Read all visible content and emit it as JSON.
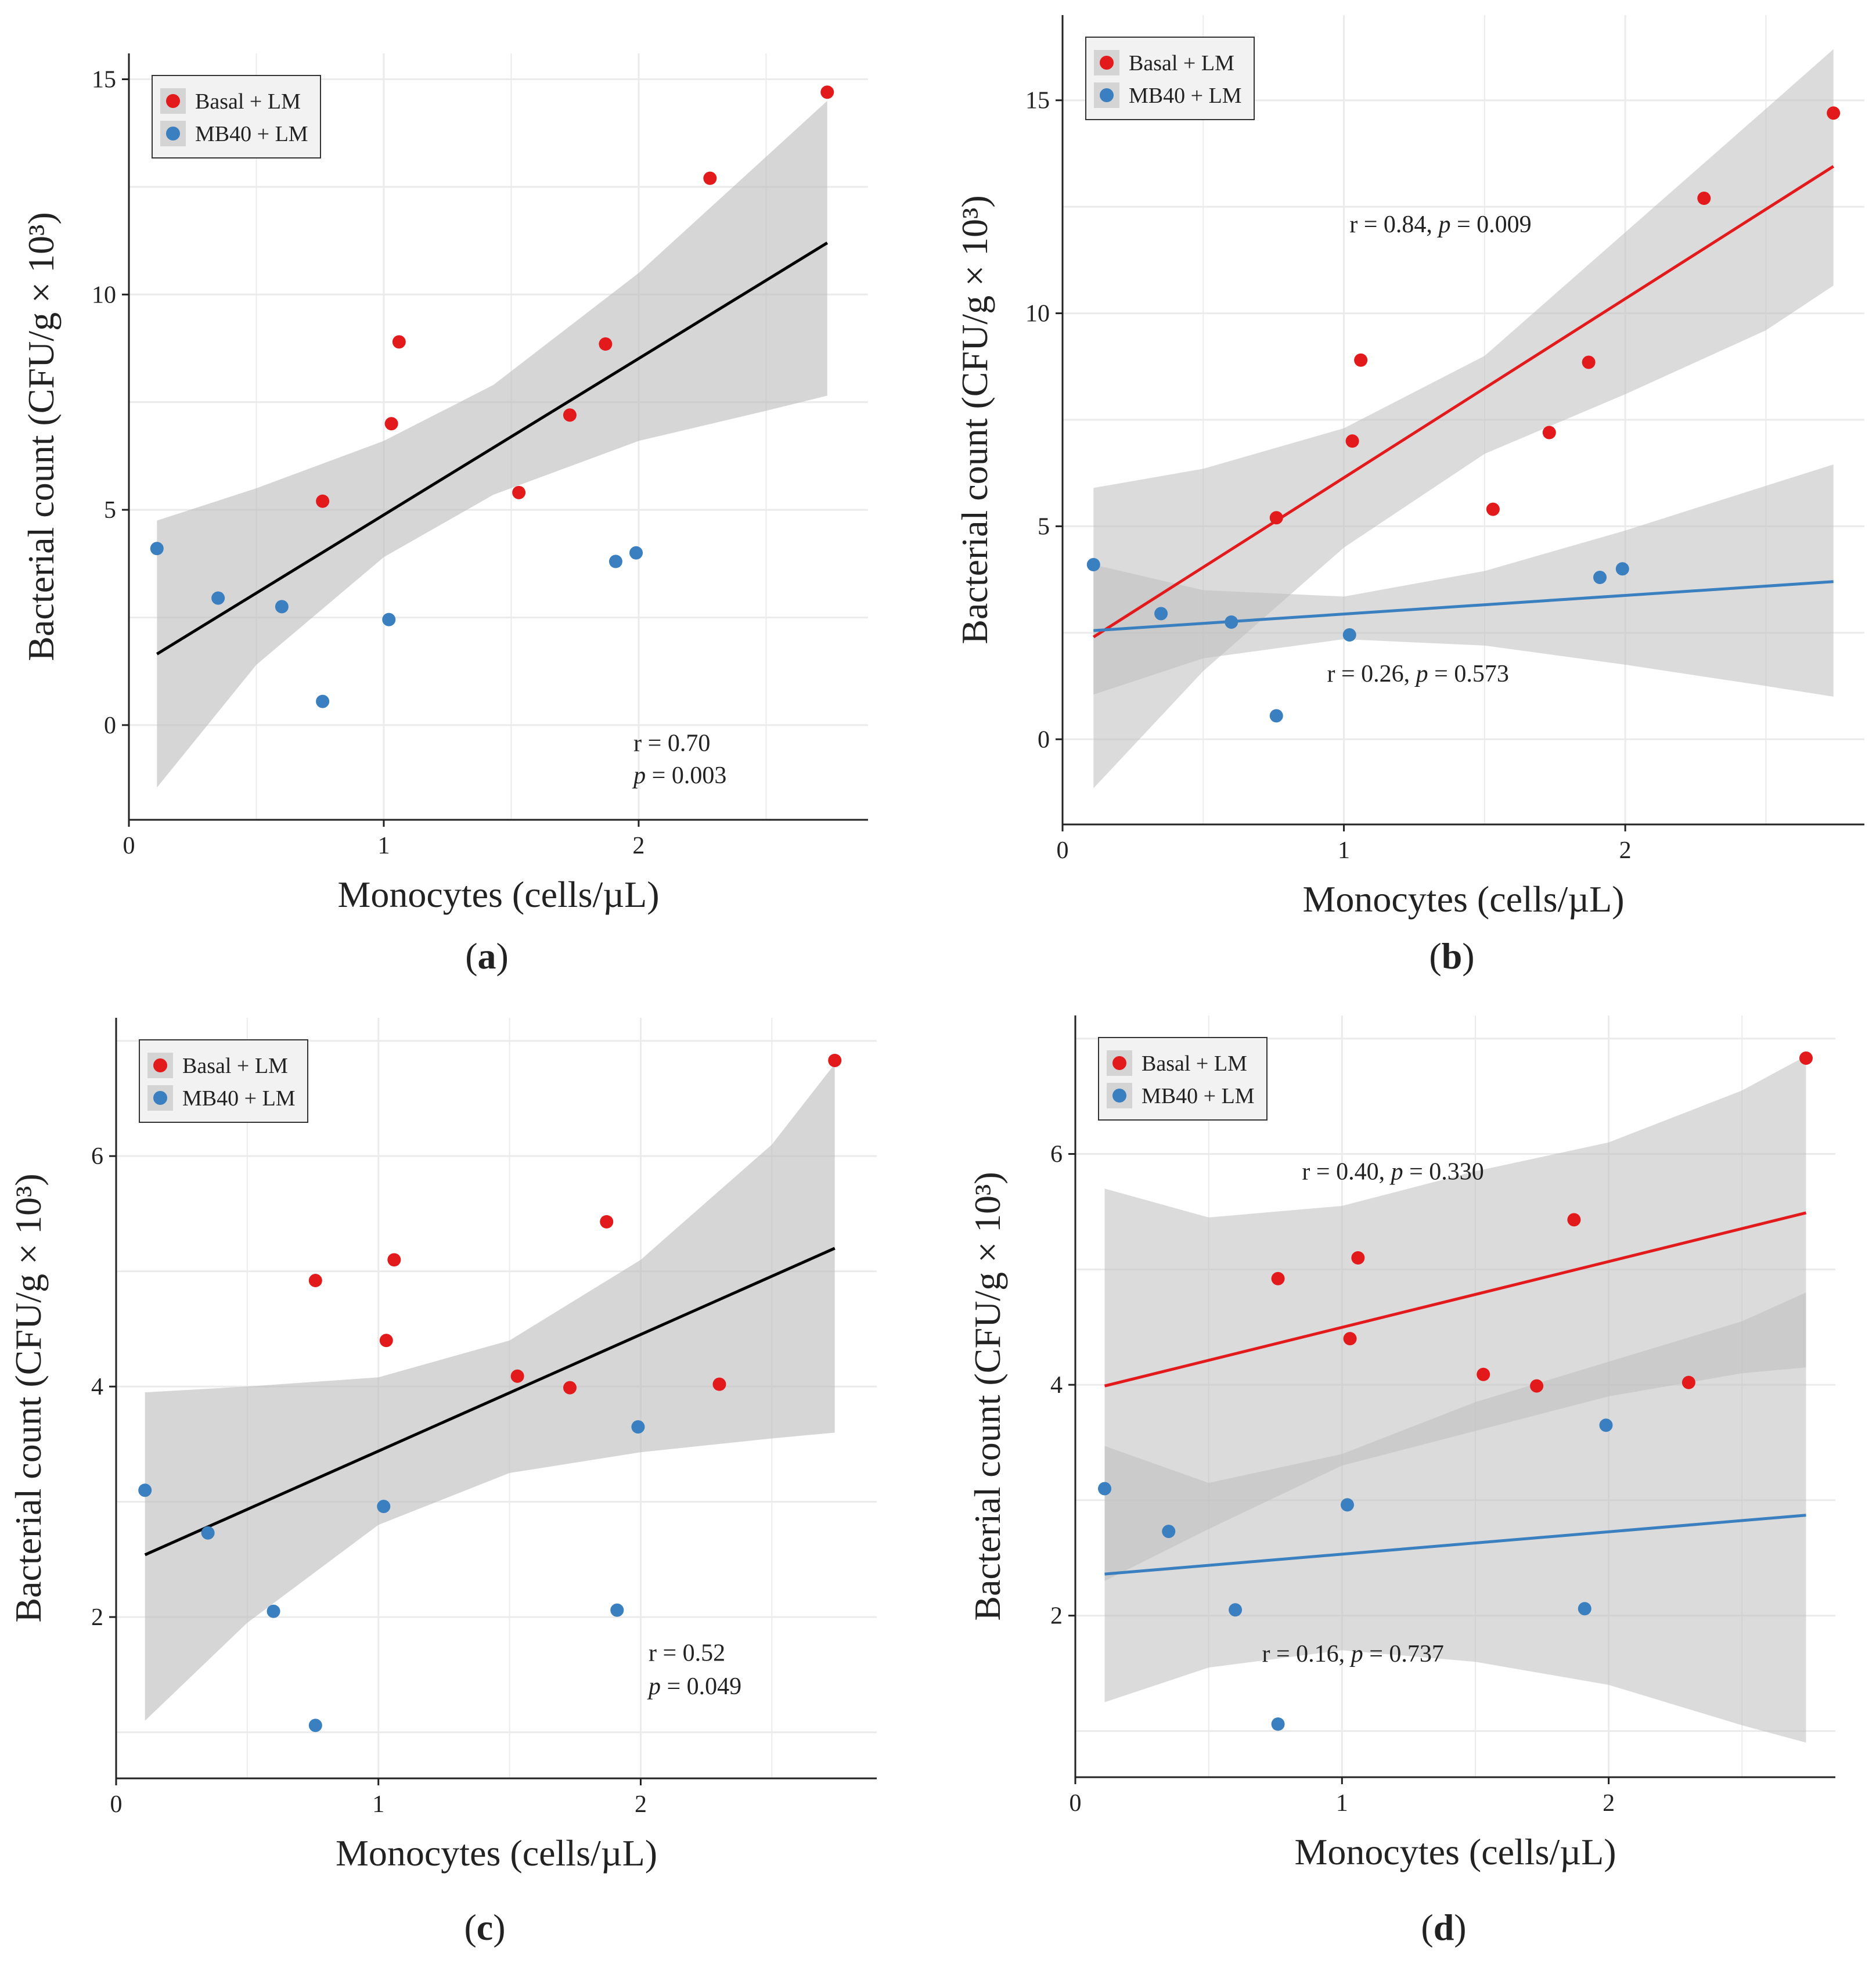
{
  "colors": {
    "basal": "#e31a1c",
    "mb40": "#3a7fbf",
    "band": "#bdbdbd",
    "grid": "#ebebeb",
    "black_line": "#000000"
  },
  "legend_labels": [
    "Basal + LM",
    "MB40 + LM"
  ],
  "chart_data": [
    {
      "id": "a",
      "panel_label": "a",
      "type": "scatter",
      "xlabel": "Monocytes (cells/µL)",
      "ylabel": "Bacterial count (CFU/g × 10³)",
      "xlim": [
        0,
        2.9
      ],
      "ylim": [
        -2.2,
        15.6
      ],
      "xticks": [
        0,
        1,
        2
      ],
      "yticks": [
        0,
        5,
        10,
        15
      ],
      "series": [
        {
          "name": "Basal + LM",
          "color_key": "basal",
          "x": [
            0.76,
            1.03,
            1.06,
            1.53,
            1.73,
            1.87,
            2.28,
            2.74
          ],
          "y": [
            5.2,
            7.0,
            8.9,
            5.4,
            7.2,
            8.85,
            12.7,
            14.7
          ]
        },
        {
          "name": "MB40 + LM",
          "color_key": "mb40",
          "x": [
            0.11,
            0.35,
            0.6,
            0.76,
            1.02,
            1.91,
            1.99
          ],
          "y": [
            4.1,
            2.95,
            2.75,
            0.55,
            2.45,
            3.8,
            4.0
          ]
        }
      ],
      "fits": [
        {
          "color_key": "black_line",
          "x": [
            0.11,
            2.74
          ],
          "y": [
            1.65,
            11.2
          ],
          "band_x": [
            0.11,
            0.5,
            1.0,
            1.43,
            2.0,
            2.5,
            2.74
          ],
          "band_lo": [
            -1.45,
            1.4,
            3.9,
            5.35,
            6.6,
            7.3,
            7.65
          ],
          "band_hi": [
            4.75,
            5.5,
            6.6,
            7.9,
            10.5,
            13.2,
            14.5
          ]
        }
      ],
      "annotations": [
        {
          "text": "r = 0.70",
          "italic_p": false,
          "x": 1.98,
          "y": -0.6
        },
        {
          "text": "p = 0.003",
          "italic_p": true,
          "x": 1.98,
          "y": -1.35
        }
      ]
    },
    {
      "id": "b",
      "panel_label": "b",
      "type": "scatter",
      "xlabel": "Monocytes (cells/µL)",
      "ylabel": "Bacterial count (CFU/g × 10³)",
      "xlim": [
        0,
        2.85
      ],
      "ylim": [
        -2.0,
        17.0
      ],
      "xticks": [
        0,
        1,
        2
      ],
      "yticks": [
        0,
        5,
        10,
        15
      ],
      "series": [
        {
          "name": "Basal + LM",
          "color_key": "basal",
          "x": [
            0.76,
            1.03,
            1.06,
            1.53,
            1.73,
            1.87,
            2.28,
            2.74
          ],
          "y": [
            5.2,
            7.0,
            8.9,
            5.4,
            7.2,
            8.85,
            12.7,
            14.7
          ]
        },
        {
          "name": "MB40 + LM",
          "color_key": "mb40",
          "x": [
            0.11,
            0.35,
            0.6,
            0.76,
            1.02,
            1.91,
            1.99
          ],
          "y": [
            4.1,
            2.95,
            2.75,
            0.55,
            2.45,
            3.8,
            4.0
          ]
        }
      ],
      "fits": [
        {
          "color_key": "basal",
          "x": [
            0.11,
            2.74
          ],
          "y": [
            2.4,
            13.45
          ],
          "band_x": [
            0.11,
            0.5,
            1.0,
            1.5,
            2.0,
            2.5,
            2.74
          ],
          "band_lo": [
            -1.15,
            1.6,
            4.5,
            6.7,
            8.1,
            9.6,
            10.65
          ],
          "band_hi": [
            5.9,
            6.35,
            7.3,
            9.0,
            11.9,
            14.8,
            16.2
          ]
        },
        {
          "color_key": "mb40",
          "x": [
            0.11,
            2.74
          ],
          "y": [
            2.55,
            3.7
          ],
          "band_x": [
            0.11,
            0.5,
            1.0,
            1.5,
            2.0,
            2.5,
            2.74
          ],
          "band_lo": [
            1.05,
            1.9,
            2.35,
            2.2,
            1.75,
            1.25,
            1.0
          ],
          "band_hi": [
            4.1,
            3.5,
            3.35,
            3.95,
            4.9,
            5.95,
            6.45
          ]
        }
      ],
      "annotations": [
        {
          "text": "r = 0.84, p = 0.009",
          "italic_p": true,
          "x": 1.02,
          "y": 11.9
        },
        {
          "text": "r = 0.26, p = 0.573",
          "italic_p": true,
          "x": 0.94,
          "y": 1.35
        }
      ]
    },
    {
      "id": "c",
      "panel_label": "c",
      "type": "scatter",
      "xlabel": "Monocytes (cells/µL)",
      "ylabel": "Bacterial count (CFU/g × 10³)",
      "xlim": [
        0,
        2.9
      ],
      "ylim": [
        0.6,
        7.2
      ],
      "xticks": [
        0,
        1,
        2
      ],
      "yticks": [
        2,
        4,
        6
      ],
      "series": [
        {
          "name": "Basal + LM",
          "color_key": "basal",
          "x": [
            0.76,
            1.03,
            1.06,
            1.53,
            1.73,
            1.87,
            2.3,
            2.74
          ],
          "y": [
            4.92,
            4.4,
            5.1,
            4.09,
            3.99,
            5.43,
            4.02,
            6.83
          ]
        },
        {
          "name": "MB40 + LM",
          "color_key": "mb40",
          "x": [
            0.11,
            0.35,
            0.6,
            0.76,
            1.02,
            1.91,
            1.99
          ],
          "y": [
            3.1,
            2.73,
            2.05,
            1.06,
            2.96,
            2.06,
            3.65
          ]
        }
      ],
      "fits": [
        {
          "color_key": "black_line",
          "x": [
            0.11,
            2.74
          ],
          "y": [
            2.54,
            5.2
          ],
          "band_x": [
            0.11,
            0.5,
            1.0,
            1.5,
            2.0,
            2.5,
            2.74
          ],
          "band_lo": [
            1.1,
            1.95,
            2.8,
            3.25,
            3.43,
            3.55,
            3.6
          ],
          "band_hi": [
            3.95,
            4.0,
            4.08,
            4.4,
            5.1,
            6.1,
            6.8
          ]
        }
      ],
      "annotations": [
        {
          "text": "r = 0.52",
          "italic_p": false,
          "x": 2.03,
          "y": 1.62
        },
        {
          "text": "p = 0.049",
          "italic_p": true,
          "x": 2.03,
          "y": 1.33
        }
      ]
    },
    {
      "id": "d",
      "panel_label": "d",
      "type": "scatter",
      "xlabel": "Monocytes (cells/µL)",
      "ylabel": "Bacterial count (CFU/g × 10³)",
      "xlim": [
        0,
        2.85
      ],
      "ylim": [
        0.6,
        7.2
      ],
      "xticks": [
        0,
        1,
        2
      ],
      "yticks": [
        2,
        4,
        6
      ],
      "series": [
        {
          "name": "Basal + LM",
          "color_key": "basal",
          "x": [
            0.76,
            1.03,
            1.06,
            1.53,
            1.73,
            1.87,
            2.3,
            2.74
          ],
          "y": [
            4.92,
            4.4,
            5.1,
            4.09,
            3.99,
            5.43,
            4.02,
            6.83
          ]
        },
        {
          "name": "MB40 + LM",
          "color_key": "mb40",
          "x": [
            0.11,
            0.35,
            0.6,
            0.76,
            1.02,
            1.91,
            1.99
          ],
          "y": [
            3.1,
            2.73,
            2.05,
            1.06,
            2.96,
            2.06,
            3.65
          ]
        }
      ],
      "fits": [
        {
          "color_key": "basal",
          "x": [
            0.11,
            2.74
          ],
          "y": [
            3.99,
            5.49
          ],
          "band_x": [
            0.11,
            0.5,
            1.0,
            1.5,
            2.0,
            2.5,
            2.74
          ],
          "band_lo": [
            2.3,
            2.75,
            3.3,
            3.6,
            3.9,
            4.1,
            4.15
          ],
          "band_hi": [
            5.7,
            5.45,
            5.55,
            5.85,
            6.1,
            6.55,
            6.85
          ]
        },
        {
          "color_key": "mb40",
          "x": [
            0.11,
            2.74
          ],
          "y": [
            2.36,
            2.87
          ],
          "band_x": [
            0.11,
            0.5,
            1.0,
            1.5,
            2.0,
            2.5,
            2.74
          ],
          "band_lo": [
            1.25,
            1.55,
            1.7,
            1.6,
            1.4,
            1.05,
            0.9
          ],
          "band_hi": [
            3.47,
            3.15,
            3.4,
            3.85,
            4.2,
            4.55,
            4.8
          ]
        }
      ],
      "annotations": [
        {
          "text": "r = 0.40, p = 0.330",
          "italic_p": true,
          "x": 0.85,
          "y": 5.78
        },
        {
          "text": "r = 0.16, p = 0.737",
          "italic_p": true,
          "x": 0.7,
          "y": 1.6
        }
      ]
    }
  ]
}
